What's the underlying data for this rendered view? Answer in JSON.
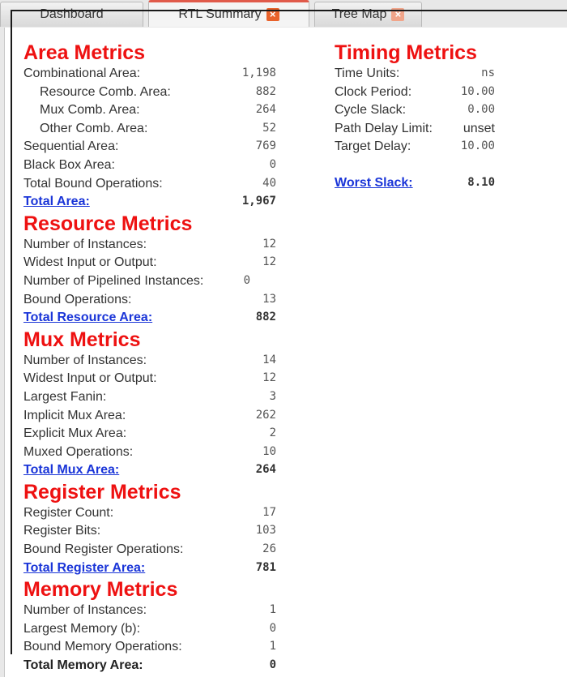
{
  "tabs": [
    {
      "label": "Dashboard"
    },
    {
      "label": "RTL Summary"
    },
    {
      "label": "Tree Map"
    }
  ],
  "area": {
    "title": "Area Metrics",
    "rows": [
      {
        "label": "Combinational Area:",
        "value": "1,198"
      },
      {
        "label": "Resource Comb. Area:",
        "value": "882"
      },
      {
        "label": "Mux Comb. Area:",
        "value": "264"
      },
      {
        "label": "Other Comb. Area:",
        "value": "52"
      },
      {
        "label": "Sequential Area:",
        "value": "769"
      },
      {
        "label": "Black Box Area:",
        "value": "0"
      },
      {
        "label": "Total Bound Operations:",
        "value": "40"
      }
    ],
    "total": {
      "label": "Total Area:",
      "value": "1,967"
    }
  },
  "resource": {
    "title": "Resource Metrics",
    "rows": [
      {
        "label": "Number of Instances:",
        "value": "12"
      },
      {
        "label": "Widest Input or Output:",
        "value": "12"
      },
      {
        "label": "Number of Pipelined Instances:",
        "value": "0"
      },
      {
        "label": "Bound Operations:",
        "value": "13"
      }
    ],
    "total": {
      "label": "Total Resource Area:",
      "value": "882"
    }
  },
  "mux": {
    "title": "Mux Metrics",
    "rows": [
      {
        "label": "Number of Instances:",
        "value": "14"
      },
      {
        "label": "Widest Input or Output:",
        "value": "12"
      },
      {
        "label": "Largest Fanin:",
        "value": "3"
      },
      {
        "label": "Implicit Mux Area:",
        "value": "262"
      },
      {
        "label": "Explicit Mux Area:",
        "value": "2"
      },
      {
        "label": "Muxed Operations:",
        "value": "10"
      }
    ],
    "total": {
      "label": "Total Mux Area:",
      "value": "264"
    }
  },
  "register": {
    "title": "Register Metrics",
    "rows": [
      {
        "label": "Register Count:",
        "value": "17"
      },
      {
        "label": "Register Bits:",
        "value": "103"
      },
      {
        "label": "Bound Register Operations:",
        "value": "26"
      }
    ],
    "total": {
      "label": "Total Register Area:",
      "value": "781"
    }
  },
  "memory": {
    "title": "Memory Metrics",
    "rows": [
      {
        "label": "Number of Instances:",
        "value": "1"
      },
      {
        "label": "Largest Memory (b):",
        "value": "0"
      },
      {
        "label": "Bound Memory Operations:",
        "value": "1"
      }
    ],
    "total": {
      "label": "Total Memory Area:",
      "value": "0"
    }
  },
  "timing": {
    "title": "Timing Metrics",
    "rows": [
      {
        "label": "Time Units:",
        "value": "ns"
      },
      {
        "label": "Clock Period:",
        "value": "10.00"
      },
      {
        "label": "Cycle Slack:",
        "value": "0.00"
      },
      {
        "label": "Path Delay Limit:",
        "value": "unset"
      },
      {
        "label": "Target Delay:",
        "value": "10.00"
      }
    ],
    "worst": {
      "label": "Worst Slack:",
      "value": "8.10"
    }
  },
  "colors": {
    "heading": "#ee1111",
    "link": "#1a35d8",
    "tab_close": "#e8622b"
  }
}
